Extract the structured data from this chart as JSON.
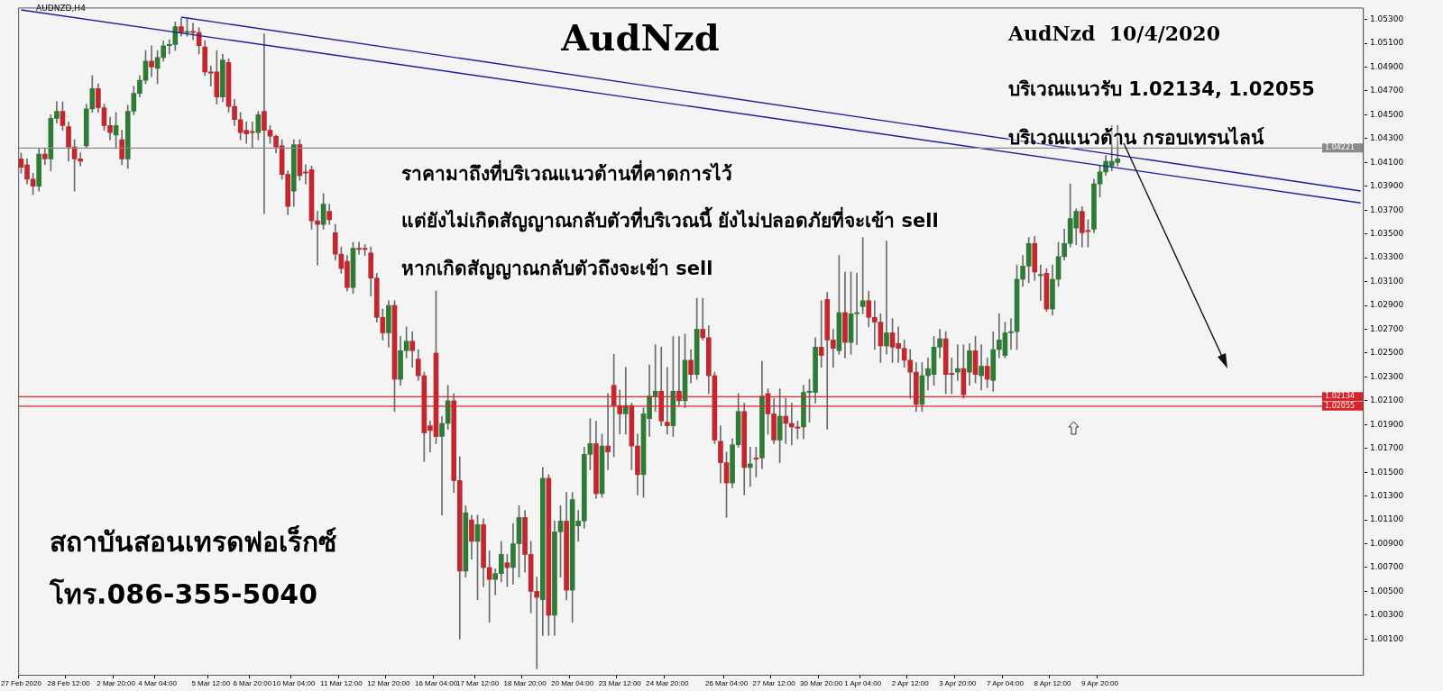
{
  "chart_data": {
    "type": "candlestick",
    "title": "AudNzd",
    "categories": [
      "27 Feb 2020",
      null,
      null,
      null,
      null,
      null,
      null,
      null,
      "28 Feb 12:00",
      null,
      null,
      null,
      null,
      null,
      null,
      null,
      "2 Mar 20:00",
      null,
      null,
      null,
      null,
      null,
      null,
      "4 Mar 04:00",
      null,
      null,
      null,
      null,
      null,
      null,
      null,
      null,
      "5 Mar 12:00",
      null,
      null,
      null,
      null,
      null,
      null,
      "6 Mar 20:00",
      null,
      null,
      null,
      null,
      null,
      null,
      "10 Mar 04:00",
      null,
      null,
      null,
      null,
      null,
      null,
      null,
      "11 Mar 12:00",
      null,
      null,
      null,
      null,
      null,
      null,
      null,
      "12 Mar 20:00",
      null,
      null,
      null,
      null,
      null,
      null,
      null,
      "16 Mar 04:00",
      null,
      null,
      null,
      null,
      null,
      null,
      "17 Mar 12:00",
      null,
      null,
      null,
      null,
      null,
      null,
      null,
      "18 Mar 20:00",
      null,
      null,
      null,
      null,
      null,
      null,
      null,
      "20 Mar 04:00",
      null,
      null,
      null,
      null,
      null,
      null,
      null,
      "23 Mar 12:00",
      null,
      null,
      null,
      null,
      null,
      null,
      null,
      "24 Mar 20:00",
      null,
      null,
      null,
      null,
      null,
      null,
      null,
      null,
      null,
      "26 Mar 04:00",
      null,
      null,
      null,
      null,
      null,
      null,
      null,
      "27 Mar 12:00",
      null,
      null,
      null,
      null,
      null,
      null,
      null,
      "30 Mar 20:00",
      null,
      null,
      null,
      null,
      null,
      null,
      "1 Apr 04:00",
      null,
      null,
      null,
      null,
      null,
      null,
      null,
      "2 Apr 12:00",
      null,
      null,
      null,
      null,
      null,
      null,
      null,
      "3 Apr 20:00",
      null,
      null,
      null,
      null,
      null,
      null,
      null,
      "7 Apr 04:00",
      null,
      null,
      null,
      null,
      null,
      null,
      null,
      "8 Apr 12:00",
      null,
      null,
      null,
      null,
      null,
      null,
      null,
      "9 Apr 20:00",
      null,
      null,
      null,
      null,
      null,
      null,
      null,
      null,
      null,
      null,
      null,
      null,
      null,
      null,
      null,
      null,
      null,
      null,
      null,
      null,
      null,
      null,
      null,
      null,
      null,
      null,
      null,
      null,
      null,
      null,
      null,
      null,
      null,
      null,
      null,
      null,
      null,
      null,
      null,
      null,
      null,
      null,
      null,
      null
    ],
    "ohlc": [
      [
        1.0413,
        1.0418,
        1.0401,
        1.0406
      ],
      [
        1.0408,
        1.0413,
        1.0392,
        1.0396
      ],
      [
        1.0396,
        1.0401,
        1.0383,
        1.039
      ],
      [
        1.039,
        1.0422,
        1.0386,
        1.0417
      ],
      [
        1.0417,
        1.0422,
        1.0408,
        1.0413
      ],
      [
        1.0413,
        1.045,
        1.0403,
        1.0447
      ],
      [
        1.0447,
        1.0461,
        1.0443,
        1.0453
      ],
      [
        1.0453,
        1.0461,
        1.0437,
        1.0441
      ],
      [
        1.044,
        1.0444,
        1.0411,
        1.0423
      ],
      [
        1.0423,
        1.0429,
        1.0386,
        1.0413
      ],
      [
        1.0413,
        1.0418,
        1.0407,
        1.0411
      ],
      [
        1.0424,
        1.0459,
        1.0422,
        1.0455
      ],
      [
        1.0455,
        1.0483,
        1.0452,
        1.0472
      ],
      [
        1.0472,
        1.0476,
        1.0452,
        1.0456
      ],
      [
        1.0456,
        1.0459,
        1.0437,
        1.0441
      ],
      [
        1.0441,
        1.0448,
        1.0429,
        1.0435
      ],
      [
        1.0433,
        1.0452,
        1.0422,
        1.0441
      ],
      [
        1.0429,
        1.0437,
        1.0408,
        1.0413
      ],
      [
        1.0413,
        1.0458,
        1.0405,
        1.0453
      ],
      [
        1.0453,
        1.0474,
        1.045,
        1.0468
      ],
      [
        1.0468,
        1.0483,
        1.0465,
        1.0479
      ],
      [
        1.0479,
        1.0504,
        1.0476,
        1.0495
      ],
      [
        1.0495,
        1.0508,
        1.0482,
        1.049
      ],
      [
        1.0489,
        1.0504,
        1.0476,
        1.0498
      ],
      [
        1.0498,
        1.0512,
        1.0495,
        1.0508
      ],
      [
        1.0508,
        1.0513,
        1.0501,
        1.0509
      ],
      [
        1.0509,
        1.0528,
        1.0504,
        1.0524
      ],
      [
        1.0524,
        1.0531,
        1.0516,
        1.0519
      ],
      [
        1.0519,
        1.0531,
        1.0516,
        1.052
      ],
      [
        1.052,
        1.0527,
        1.0513,
        1.0519
      ],
      [
        1.0519,
        1.0523,
        1.0501,
        1.0508
      ],
      [
        1.0507,
        1.0512,
        1.0483,
        1.0486
      ],
      [
        1.0486,
        1.0491,
        1.0474,
        1.0485
      ],
      [
        1.0486,
        1.0504,
        1.0459,
        1.0465
      ],
      [
        1.0465,
        1.0501,
        1.0461,
        1.0496
      ],
      [
        1.0494,
        1.0497,
        1.0452,
        1.0457
      ],
      [
        1.0457,
        1.0463,
        1.0441,
        1.0446
      ],
      [
        1.0446,
        1.0452,
        1.0429,
        1.0435
      ],
      [
        1.0437,
        1.0444,
        1.0426,
        1.0434
      ],
      [
        1.0436,
        1.0444,
        1.0422,
        1.0435
      ],
      [
        1.0435,
        1.0453,
        1.0429,
        1.045
      ],
      [
        1.0453,
        1.0518,
        1.0367,
        1.0437
      ],
      [
        1.0437,
        1.0441,
        1.0426,
        1.0432
      ],
      [
        1.0432,
        1.0433,
        1.0418,
        1.0423
      ],
      [
        1.0424,
        1.0429,
        1.0396,
        1.04
      ],
      [
        1.04,
        1.0403,
        1.0366,
        1.0373
      ],
      [
        1.0386,
        1.0429,
        1.0373,
        1.0425
      ],
      [
        1.0425,
        1.0429,
        1.0395,
        1.0399
      ],
      [
        1.0402,
        1.0408,
        1.0392,
        1.0401
      ],
      [
        1.0404,
        1.0407,
        1.0354,
        1.0361
      ],
      [
        1.0361,
        1.0369,
        1.0324,
        1.0358
      ],
      [
        1.0358,
        1.0384,
        1.0354,
        1.0375
      ],
      [
        1.0369,
        1.0375,
        1.0358,
        1.0362
      ],
      [
        1.0351,
        1.0358,
        1.0328,
        1.0333
      ],
      [
        1.0333,
        1.0339,
        1.0317,
        1.0321
      ],
      [
        1.0327,
        1.0332,
        1.0302,
        1.0305
      ],
      [
        1.0305,
        1.0343,
        1.03,
        1.0338
      ],
      [
        1.0338,
        1.0343,
        1.0333,
        1.0337
      ],
      [
        1.0338,
        1.0341,
        1.0332,
        1.0337
      ],
      [
        1.0334,
        1.0339,
        1.0298,
        1.0313
      ],
      [
        1.0313,
        1.0317,
        1.0276,
        1.028
      ],
      [
        1.028,
        1.0287,
        1.0261,
        1.0267
      ],
      [
        1.0267,
        1.0294,
        1.0255,
        1.029
      ],
      [
        1.029,
        1.0294,
        1.0201,
        1.0228
      ],
      [
        1.0228,
        1.0264,
        1.0223,
        1.0252
      ],
      [
        1.0252,
        1.0272,
        1.0246,
        1.026
      ],
      [
        1.026,
        1.0268,
        1.0238,
        1.0252
      ],
      [
        1.0245,
        1.0253,
        1.0227,
        1.0231
      ],
      [
        1.0231,
        1.0234,
        1.0159,
        1.0183
      ],
      [
        1.0189,
        1.0193,
        1.0167,
        1.0185
      ],
      [
        1.025,
        1.0302,
        1.0174,
        1.018
      ],
      [
        1.018,
        1.0197,
        1.0114,
        1.0191
      ],
      [
        1.0191,
        1.0223,
        1.0186,
        1.021
      ],
      [
        1.021,
        1.0216,
        1.0133,
        1.0143
      ],
      [
        1.0143,
        1.0163,
        1.001,
        1.0067
      ],
      [
        1.0067,
        1.0122,
        1.0062,
        1.0116
      ],
      [
        1.011,
        1.0114,
        1.0077,
        1.0092
      ],
      [
        1.0092,
        1.0114,
        1.0043,
        1.0106
      ],
      [
        1.0106,
        1.0111,
        1.0054,
        1.007
      ],
      [
        1.007,
        1.0084,
        1.0024,
        1.006
      ],
      [
        1.006,
        1.0069,
        1.0047,
        1.0065
      ],
      [
        1.0065,
        1.0092,
        1.0058,
        1.0081
      ],
      [
        1.0074,
        1.0081,
        1.0054,
        1.007
      ],
      [
        1.007,
        1.0107,
        1.0056,
        1.009
      ],
      [
        1.009,
        1.0122,
        1.0062,
        1.0112
      ],
      [
        1.0112,
        1.0118,
        1.0066,
        1.0081
      ],
      [
        1.0081,
        1.0092,
        1.0032,
        1.005
      ],
      [
        1.005,
        1.0062,
        0.9985,
        1.0045
      ],
      [
        1.0043,
        1.0154,
        1.0013,
        1.0145
      ],
      [
        1.0145,
        1.0148,
        1.0013,
        1.003
      ],
      [
        1.003,
        1.0109,
        1.0013,
        1.01
      ],
      [
        1.01,
        1.0122,
        1.0062,
        1.0109
      ],
      [
        1.0109,
        1.0133,
        1.0043,
        1.0051
      ],
      [
        1.0051,
        1.0133,
        1.0024,
        1.0127
      ],
      [
        1.0105,
        1.0118,
        1.0092,
        1.0109
      ],
      [
        1.0109,
        1.0171,
        1.0103,
        1.0165
      ],
      [
        1.0165,
        1.0195,
        1.0152,
        1.0174
      ],
      [
        1.0174,
        1.0193,
        1.0128,
        1.0132
      ],
      [
        1.0132,
        1.0182,
        1.0129,
        1.0172
      ],
      [
        1.0172,
        1.0216,
        1.0152,
        1.0167
      ],
      [
        1.0223,
        1.0249,
        1.0163,
        1.0206
      ],
      [
        1.0206,
        1.0219,
        1.0182,
        1.0199
      ],
      [
        1.0199,
        1.0238,
        1.0182,
        1.0206
      ],
      [
        1.0206,
        1.0208,
        1.0152,
        1.0172
      ],
      [
        1.0172,
        1.0182,
        1.0131,
        1.0148
      ],
      [
        1.0148,
        1.0204,
        1.0129,
        1.0199
      ],
      [
        1.0195,
        1.024,
        1.018,
        1.0214
      ],
      [
        1.0214,
        1.0257,
        1.0201,
        1.0218
      ],
      [
        1.0218,
        1.0255,
        1.0189,
        1.0193
      ],
      [
        1.0192,
        1.0238,
        1.0182,
        1.0189
      ],
      [
        1.0189,
        1.0264,
        1.018,
        1.0218
      ],
      [
        1.0218,
        1.0264,
        1.0206,
        1.021
      ],
      [
        1.021,
        1.0266,
        1.0204,
        1.0244
      ],
      [
        1.0244,
        1.0253,
        1.0225,
        1.0232
      ],
      [
        1.0232,
        1.0296,
        1.0228,
        1.027
      ],
      [
        1.027,
        1.0296,
        1.0261,
        1.0263
      ],
      [
        1.0263,
        1.0273,
        1.0216,
        1.0231
      ],
      [
        1.0231,
        1.0234,
        1.0174,
        1.0177
      ],
      [
        1.0176,
        1.0189,
        1.0141,
        1.0158
      ],
      [
        1.0158,
        1.0167,
        1.0112,
        1.0141
      ],
      [
        1.0141,
        1.0178,
        1.0137,
        1.0173
      ],
      [
        1.0173,
        1.0216,
        1.0171,
        1.0201
      ],
      [
        1.0201,
        1.0208,
        1.0131,
        1.0154
      ],
      [
        1.0154,
        1.0171,
        1.0138,
        1.0157
      ],
      [
        1.0162,
        1.0171,
        1.0146,
        1.0161
      ],
      [
        1.0162,
        1.0243,
        1.0153,
        1.0214
      ],
      [
        1.0216,
        1.022,
        1.0182,
        1.0199
      ],
      [
        1.0199,
        1.0212,
        1.0174,
        1.0177
      ],
      [
        1.0177,
        1.022,
        1.0158,
        1.0197
      ],
      [
        1.0197,
        1.0212,
        1.0174,
        1.0191
      ],
      [
        1.0191,
        1.0208,
        1.0173,
        1.0188
      ],
      [
        1.0188,
        1.0193,
        1.0178,
        1.0187
      ],
      [
        1.0188,
        1.0223,
        1.0178,
        1.0217
      ],
      [
        1.0217,
        1.0228,
        1.0192,
        1.0218
      ],
      [
        1.0217,
        1.0263,
        1.0208,
        1.0255
      ],
      [
        1.0255,
        1.0294,
        1.0238,
        1.0248
      ],
      [
        1.0295,
        1.0301,
        1.0186,
        1.0261
      ],
      [
        1.0261,
        1.027,
        1.0238,
        1.0254
      ],
      [
        1.0252,
        1.0332,
        1.0249,
        1.0284
      ],
      [
        1.0284,
        1.0318,
        1.0246,
        1.0259
      ],
      [
        1.0259,
        1.0318,
        1.0249,
        1.0283
      ],
      [
        1.0283,
        1.0317,
        1.0257,
        1.0284
      ],
      [
        1.0289,
        1.0347,
        1.0283,
        1.0294
      ],
      [
        1.0294,
        1.0302,
        1.0272,
        1.028
      ],
      [
        1.028,
        1.0294,
        1.0253,
        1.0276
      ],
      [
        1.0276,
        1.0283,
        1.0242,
        1.0256
      ],
      [
        1.0256,
        1.0344,
        1.0249,
        1.0267
      ],
      [
        1.0267,
        1.0279,
        1.0242,
        1.0255
      ],
      [
        1.0258,
        1.0272,
        1.0242,
        1.0254
      ],
      [
        1.0254,
        1.0261,
        1.0238,
        1.0244
      ],
      [
        1.0244,
        1.0253,
        1.0212,
        1.0234
      ],
      [
        1.0234,
        1.0242,
        1.0201,
        1.0207
      ],
      [
        1.0207,
        1.0242,
        1.0201,
        1.0231
      ],
      [
        1.0231,
        1.0246,
        1.0219,
        1.0237
      ],
      [
        1.0232,
        1.0264,
        1.0223,
        1.0255
      ],
      [
        1.0255,
        1.027,
        1.0246,
        1.0262
      ],
      [
        1.0262,
        1.0268,
        1.0216,
        1.0232
      ],
      [
        1.0233,
        1.0246,
        1.0216,
        1.0232
      ],
      [
        1.0234,
        1.0257,
        1.0227,
        1.0237
      ],
      [
        1.0237,
        1.0257,
        1.0212,
        1.0215
      ],
      [
        1.0234,
        1.0258,
        1.0223,
        1.0252
      ],
      [
        1.0252,
        1.0264,
        1.0225,
        1.0232
      ],
      [
        1.0231,
        1.0257,
        1.0219,
        1.0239
      ],
      [
        1.0239,
        1.0246,
        1.0221,
        1.0228
      ],
      [
        1.0227,
        1.0268,
        1.0218,
        1.0253
      ],
      [
        1.0253,
        1.0283,
        1.0246,
        1.0261
      ],
      [
        1.0248,
        1.0276,
        1.0246,
        1.0267
      ],
      [
        1.0267,
        1.0279,
        1.0253,
        1.0268
      ],
      [
        1.0268,
        1.0324,
        1.0253,
        1.0312
      ],
      [
        1.0312,
        1.0332,
        1.0306,
        1.0323
      ],
      [
        1.0323,
        1.0347,
        1.0309,
        1.0342
      ],
      [
        1.0342,
        1.0348,
        1.0311,
        1.0318
      ],
      [
        1.0315,
        1.0324,
        1.0294,
        1.0316
      ],
      [
        1.0317,
        1.0321,
        1.0285,
        1.0287
      ],
      [
        1.0287,
        1.0324,
        1.0282,
        1.0312
      ],
      [
        1.0312,
        1.0343,
        1.0306,
        1.0331
      ],
      [
        1.0331,
        1.0354,
        1.0328,
        1.0342
      ],
      [
        1.0342,
        1.0392,
        1.0339,
        1.0363
      ],
      [
        1.0355,
        1.0371,
        1.0341,
        1.0369
      ],
      [
        1.0369,
        1.0373,
        1.0339,
        1.0351
      ],
      [
        1.0353,
        1.0362,
        1.0339,
        1.0352
      ],
      [
        1.0354,
        1.0396,
        1.0351,
        1.0392
      ],
      [
        1.0392,
        1.0407,
        1.0381,
        1.0402
      ],
      [
        1.0402,
        1.0416,
        1.0399,
        1.0411
      ],
      [
        1.0407,
        1.0441,
        1.0403,
        1.0411
      ],
      [
        1.041,
        1.0441,
        1.0407,
        1.0413
      ],
      null,
      null,
      null,
      null,
      null,
      null,
      null,
      null,
      null,
      null,
      null,
      null,
      null,
      null,
      null,
      null,
      null,
      null,
      null,
      null,
      null,
      null,
      null,
      null,
      null,
      null,
      null,
      null,
      null,
      null,
      null,
      null,
      null,
      null,
      null,
      null,
      null,
      null,
      null,
      null,
      null
    ],
    "series": [
      {
        "type": "line",
        "color": "#1c1ca0",
        "values": [
          1.0538,
          null,
          null,
          null,
          null,
          null,
          null,
          null,
          null,
          null,
          null,
          null,
          null,
          null,
          null,
          null,
          null,
          null,
          null,
          null,
          null,
          null,
          null,
          null,
          null,
          null,
          null,
          null,
          null,
          null,
          null,
          null,
          null,
          null,
          null,
          null,
          null,
          null,
          null,
          null,
          null,
          null,
          null,
          null,
          null,
          null,
          null,
          null,
          null,
          null,
          null,
          null,
          null,
          null,
          null,
          null,
          null,
          null,
          null,
          null,
          null,
          null,
          null,
          null,
          null,
          null,
          null,
          null,
          null,
          null,
          null,
          null,
          null,
          null,
          null,
          null,
          null,
          null,
          null,
          null,
          null,
          null,
          null,
          null,
          null,
          null,
          null,
          null,
          null,
          null,
          null,
          null,
          null,
          null,
          null,
          null,
          null,
          null,
          null,
          null,
          null,
          null,
          null,
          null,
          null,
          null,
          null,
          null,
          null,
          null,
          null,
          null,
          null,
          null,
          null,
          null,
          null,
          null,
          null,
          null,
          null,
          null,
          null,
          null,
          null,
          null,
          null,
          null,
          null,
          null,
          null,
          null,
          null,
          null,
          null,
          null,
          null,
          null,
          null,
          null,
          null,
          null,
          null,
          null,
          null,
          null,
          null,
          null,
          null,
          null,
          null,
          null,
          null,
          null,
          null,
          null,
          null,
          null,
          null,
          null,
          null,
          null,
          null,
          null,
          null,
          null,
          null,
          null,
          null,
          null,
          null,
          null,
          null,
          null,
          null,
          null,
          null,
          null,
          null,
          null,
          null,
          null,
          null,
          null,
          null,
          null,
          null,
          null,
          null,
          null,
          null,
          null,
          null,
          null,
          null,
          null,
          null,
          null,
          null,
          null,
          null,
          null,
          null,
          null,
          null,
          null,
          null,
          null,
          null,
          null,
          null,
          null,
          null,
          null,
          null,
          null,
          null,
          null,
          null,
          null,
          null,
          null,
          null,
          null,
          null,
          null,
          1.0376
        ]
      },
      {
        "type": "line",
        "color": "#1c1ca0",
        "values": [
          null,
          null,
          null,
          null,
          null,
          null,
          null,
          null,
          null,
          null,
          null,
          null,
          null,
          null,
          null,
          null,
          null,
          null,
          null,
          null,
          null,
          null,
          null,
          null,
          null,
          null,
          null,
          1.0532,
          null,
          null,
          null,
          null,
          null,
          null,
          null,
          null,
          null,
          null,
          null,
          null,
          null,
          null,
          null,
          null,
          null,
          null,
          null,
          null,
          null,
          null,
          null,
          null,
          null,
          null,
          null,
          null,
          null,
          null,
          null,
          null,
          null,
          null,
          null,
          null,
          null,
          null,
          null,
          null,
          null,
          null,
          null,
          null,
          null,
          null,
          null,
          null,
          null,
          null,
          null,
          null,
          null,
          null,
          null,
          null,
          null,
          null,
          null,
          null,
          null,
          null,
          null,
          null,
          null,
          null,
          null,
          null,
          null,
          null,
          null,
          null,
          null,
          null,
          null,
          null,
          null,
          null,
          null,
          null,
          null,
          null,
          null,
          null,
          null,
          null,
          null,
          null,
          null,
          null,
          null,
          null,
          null,
          null,
          null,
          null,
          null,
          null,
          null,
          null,
          null,
          null,
          null,
          null,
          null,
          null,
          null,
          null,
          null,
          null,
          null,
          null,
          null,
          null,
          null,
          null,
          null,
          null,
          null,
          null,
          null,
          null,
          null,
          null,
          null,
          null,
          null,
          null,
          null,
          null,
          null,
          null,
          null,
          null,
          null,
          null,
          null,
          null,
          null,
          null,
          null,
          null,
          null,
          null,
          null,
          null,
          null,
          null,
          null,
          null,
          null,
          null,
          null,
          null,
          null,
          null,
          null,
          null,
          null,
          null,
          null,
          null,
          null,
          null,
          null,
          null,
          null,
          null,
          null,
          null,
          null,
          null,
          null,
          null,
          null,
          null,
          null,
          null,
          null,
          null,
          null,
          null,
          null,
          null,
          null,
          null,
          null,
          null,
          null,
          null,
          null,
          null,
          null,
          null,
          null,
          null,
          null,
          null,
          1.0386
        ]
      }
    ],
    "ref_lines": [
      {
        "axis": "y",
        "value": 1.04221,
        "label": "1.04221",
        "color": "#8a8a8a"
      },
      {
        "axis": "y",
        "value": 1.02134,
        "label": "1.02134",
        "color": "#d9252a"
      },
      {
        "axis": "y",
        "value": 1.02055,
        "label": "1.02055",
        "color": "#d9252a"
      }
    ],
    "ylim": [
      0.998,
      1.054
    ],
    "yticks": [
      {
        "value": 1.001,
        "label": "1.00100"
      },
      {
        "value": 1.003,
        "label": "1.00300"
      },
      {
        "value": 1.005,
        "label": "1.00500"
      },
      {
        "value": 1.007,
        "label": "1.00700"
      },
      {
        "value": 1.009,
        "label": "1.00900"
      },
      {
        "value": 1.011,
        "label": "1.01100"
      },
      {
        "value": 1.013,
        "label": "1.01300"
      },
      {
        "value": 1.015,
        "label": "1.01500"
      },
      {
        "value": 1.017,
        "label": "1.01700"
      },
      {
        "value": 1.019,
        "label": "1.01900"
      },
      {
        "value": 1.021,
        "label": "1.02100"
      },
      {
        "value": 1.023,
        "label": "1.02300"
      },
      {
        "value": 1.025,
        "label": "1.02500"
      },
      {
        "value": 1.027,
        "label": "1.02700"
      },
      {
        "value": 1.029,
        "label": "1.02900"
      },
      {
        "value": 1.031,
        "label": "1.03100"
      },
      {
        "value": 1.033,
        "label": "1.03300"
      },
      {
        "value": 1.035,
        "label": "1.03500"
      },
      {
        "value": 1.037,
        "label": "1.03700"
      },
      {
        "value": 1.039,
        "label": "1.03900"
      },
      {
        "value": 1.041,
        "label": "1.04100"
      },
      {
        "value": 1.043,
        "label": "1.04300"
      },
      {
        "value": 1.045,
        "label": "1.04500"
      },
      {
        "value": 1.047,
        "label": "1.04700"
      },
      {
        "value": 1.049,
        "label": "1.04900"
      },
      {
        "value": 1.051,
        "label": "1.05100"
      },
      {
        "value": 1.053,
        "label": "1.05300"
      }
    ],
    "annotations": [
      "AUDNZD,H4",
      "AudNzd  10/4/2020",
      "บริเวณแนวรับ 1.02134, 1.02055",
      "บริเวณแนวต้าน กรอบเทรนไลน์",
      "ราคามาถึงที่บริเวณแนวต้านที่คาดการไว้",
      "แต่ยังไม่เกิดสัญญาณกลับตัวที่บริเวณนี้ ยังไม่ปลอดภัยที่จะเข้า sell",
      "หากเกิดสัญญาณกลับตัวถึงจะเข้า sell",
      "สถาบันสอนเทรดฟอเร็กซ์",
      "โทร.086-355-5040"
    ]
  }
}
